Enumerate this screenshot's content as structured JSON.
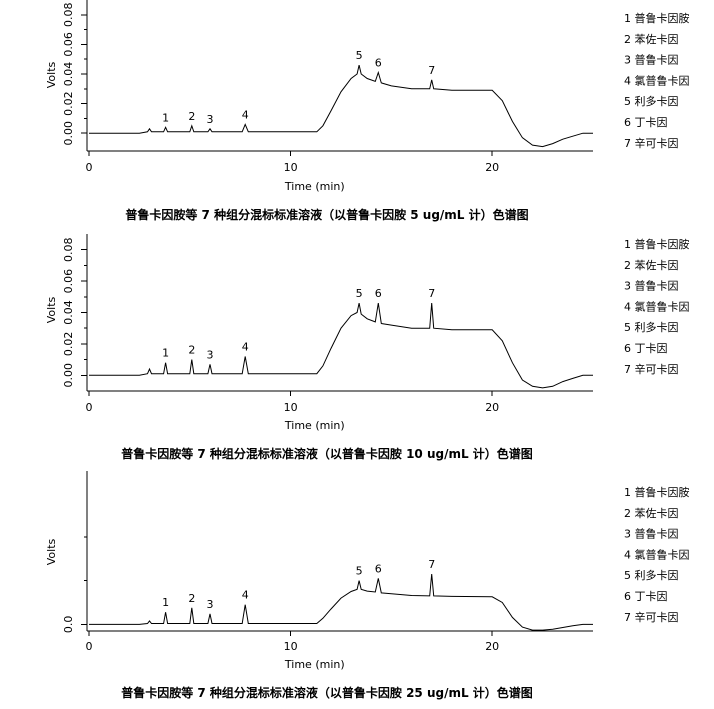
{
  "chart_data": [
    {
      "type": "line",
      "caption": "普鲁卡因胺等 7 种组分混标标准溶液（以普鲁卡因胺 5 ug/mL 计）色谱图",
      "xlabel": "Time (min)",
      "ylabel": "Volts",
      "xlim": [
        0,
        25
      ],
      "ylim": [
        -0.012,
        0.09
      ],
      "xticks": [
        0,
        10,
        20
      ],
      "yticks": [
        0.0,
        0.02,
        0.04,
        0.06,
        0.08
      ],
      "ytick_labels": [
        "0.00",
        "0.02",
        "0.04",
        "0.06",
        "0.08"
      ],
      "yminor": [
        0.01,
        0.03,
        0.05,
        0.07
      ],
      "grid": false,
      "legend_position": "right",
      "legend": [
        "1 普鲁卡因胺",
        "2 苯佐卡因",
        "3 普鲁卡因",
        "4 氯普鲁卡因",
        "5 利多卡因",
        "6 丁卡因",
        "7 辛可卡因"
      ],
      "peaks": [
        {
          "label": "1",
          "x": 3.8,
          "y": 0.004
        },
        {
          "label": "2",
          "x": 5.1,
          "y": 0.005
        },
        {
          "label": "3",
          "x": 6.0,
          "y": 0.003
        },
        {
          "label": "4",
          "x": 7.75,
          "y": 0.006
        },
        {
          "label": "5",
          "x": 13.4,
          "y": 0.046
        },
        {
          "label": "6",
          "x": 14.35,
          "y": 0.041
        },
        {
          "label": "7",
          "x": 17.0,
          "y": 0.036
        }
      ],
      "x": [
        0,
        2.5,
        2.9,
        3.0,
        3.1,
        3.7,
        3.8,
        3.9,
        5.0,
        5.1,
        5.2,
        5.9,
        6.0,
        6.1,
        7.6,
        7.75,
        7.9,
        11.3,
        11.6,
        12.0,
        12.5,
        13.0,
        13.3,
        13.4,
        13.5,
        13.8,
        14.2,
        14.35,
        14.5,
        15.0,
        16.0,
        16.9,
        17.0,
        17.1,
        18.0,
        20.0,
        20.5,
        21.0,
        21.5,
        22.0,
        22.5,
        23.0,
        23.5,
        24.0,
        24.5,
        25.0
      ],
      "y": [
        0.0,
        0.0,
        0.001,
        0.003,
        0.001,
        0.001,
        0.004,
        0.001,
        0.001,
        0.005,
        0.001,
        0.001,
        0.003,
        0.001,
        0.001,
        0.006,
        0.001,
        0.001,
        0.005,
        0.015,
        0.028,
        0.037,
        0.04,
        0.046,
        0.04,
        0.037,
        0.035,
        0.041,
        0.034,
        0.032,
        0.03,
        0.03,
        0.036,
        0.03,
        0.029,
        0.029,
        0.022,
        0.008,
        -0.003,
        -0.008,
        -0.009,
        -0.007,
        -0.004,
        -0.002,
        0.0,
        0.0
      ]
    },
    {
      "type": "line",
      "caption": "普鲁卡因胺等 7 种组分混标标准溶液（以普鲁卡因胺 10 ug/mL 计）色谱图",
      "xlabel": "Time (min)",
      "ylabel": "Volts",
      "xlim": [
        0,
        25
      ],
      "ylim": [
        -0.01,
        0.09
      ],
      "xticks": [
        0,
        10,
        20
      ],
      "yticks": [
        0.0,
        0.02,
        0.04,
        0.06,
        0.08
      ],
      "ytick_labels": [
        "0.00",
        "0.02",
        "0.04",
        "0.06",
        "0.08"
      ],
      "yminor": [
        0.01,
        0.03,
        0.05,
        0.07
      ],
      "grid": false,
      "legend_position": "right",
      "legend": [
        "1 普鲁卡因胺",
        "2 苯佐卡因",
        "3 普鲁卡因",
        "4 氯普鲁卡因",
        "5 利多卡因",
        "6 丁卡因",
        "7 辛可卡因"
      ],
      "peaks": [
        {
          "label": "1",
          "x": 3.8,
          "y": 0.008
        },
        {
          "label": "2",
          "x": 5.1,
          "y": 0.01
        },
        {
          "label": "3",
          "x": 6.0,
          "y": 0.007
        },
        {
          "label": "4",
          "x": 7.75,
          "y": 0.012
        },
        {
          "label": "5",
          "x": 13.4,
          "y": 0.046
        },
        {
          "label": "6",
          "x": 14.35,
          "y": 0.046
        },
        {
          "label": "7",
          "x": 17.0,
          "y": 0.046
        }
      ],
      "x": [
        0,
        2.5,
        2.9,
        3.0,
        3.1,
        3.7,
        3.8,
        3.9,
        5.0,
        5.1,
        5.2,
        5.9,
        6.0,
        6.1,
        7.6,
        7.75,
        7.9,
        11.3,
        11.6,
        12.0,
        12.5,
        13.0,
        13.3,
        13.4,
        13.5,
        13.8,
        14.2,
        14.35,
        14.5,
        15.0,
        16.0,
        16.9,
        17.0,
        17.1,
        18.0,
        20.0,
        20.5,
        21.0,
        21.5,
        22.0,
        22.5,
        23.0,
        23.5,
        24.0,
        24.5,
        25.0
      ],
      "y": [
        0.0,
        0.0,
        0.001,
        0.004,
        0.001,
        0.001,
        0.008,
        0.001,
        0.001,
        0.01,
        0.001,
        0.001,
        0.007,
        0.001,
        0.001,
        0.012,
        0.001,
        0.001,
        0.006,
        0.017,
        0.03,
        0.038,
        0.04,
        0.046,
        0.039,
        0.036,
        0.034,
        0.046,
        0.033,
        0.032,
        0.03,
        0.03,
        0.046,
        0.03,
        0.029,
        0.029,
        0.022,
        0.008,
        -0.003,
        -0.007,
        -0.008,
        -0.007,
        -0.004,
        -0.002,
        0.0,
        0.0
      ]
    },
    {
      "type": "line",
      "caption": "普鲁卡因胺等 7 种组分混标标准溶液（以普鲁卡因胺 25 ug/mL 计）色谱图",
      "xlabel": "Time (min)",
      "ylabel": "Volts",
      "xlim": [
        0,
        25
      ],
      "ylim": [
        -0.015,
        0.35
      ],
      "xticks": [
        0,
        10,
        20
      ],
      "yticks": [
        0.0
      ],
      "ytick_labels": [
        "0.0"
      ],
      "yminor": [
        0.1,
        0.2
      ],
      "grid": false,
      "legend_position": "right",
      "legend": [
        "1 普鲁卡因胺",
        "2 苯佐卡因",
        "3 普鲁卡因",
        "4 氯普鲁卡因",
        "5 利多卡因",
        "6 丁卡因",
        "7 辛可卡因"
      ],
      "peaks": [
        {
          "label": "1",
          "x": 3.8,
          "y": 0.028
        },
        {
          "label": "2",
          "x": 5.1,
          "y": 0.038
        },
        {
          "label": "3",
          "x": 6.0,
          "y": 0.024
        },
        {
          "label": "4",
          "x": 7.75,
          "y": 0.045
        },
        {
          "label": "5",
          "x": 13.4,
          "y": 0.1
        },
        {
          "label": "6",
          "x": 14.35,
          "y": 0.105
        },
        {
          "label": "7",
          "x": 17.0,
          "y": 0.115
        }
      ],
      "x": [
        0,
        2.5,
        2.9,
        3.0,
        3.1,
        3.7,
        3.8,
        3.9,
        5.0,
        5.1,
        5.2,
        5.9,
        6.0,
        6.1,
        7.6,
        7.75,
        7.9,
        11.3,
        11.6,
        12.0,
        12.5,
        13.0,
        13.3,
        13.4,
        13.5,
        13.8,
        14.2,
        14.35,
        14.5,
        15.0,
        16.0,
        16.9,
        17.0,
        17.1,
        18.0,
        20.0,
        20.5,
        21.0,
        21.5,
        22.0,
        22.5,
        23.0,
        23.5,
        24.0,
        24.5,
        25.0
      ],
      "y": [
        0.0,
        0.0,
        0.002,
        0.008,
        0.002,
        0.002,
        0.028,
        0.002,
        0.002,
        0.038,
        0.002,
        0.002,
        0.024,
        0.002,
        0.002,
        0.045,
        0.002,
        0.002,
        0.014,
        0.035,
        0.06,
        0.075,
        0.08,
        0.1,
        0.08,
        0.076,
        0.074,
        0.105,
        0.072,
        0.07,
        0.066,
        0.065,
        0.115,
        0.065,
        0.064,
        0.063,
        0.05,
        0.016,
        -0.006,
        -0.013,
        -0.013,
        -0.011,
        -0.007,
        -0.003,
        0.0,
        0.0
      ]
    }
  ]
}
